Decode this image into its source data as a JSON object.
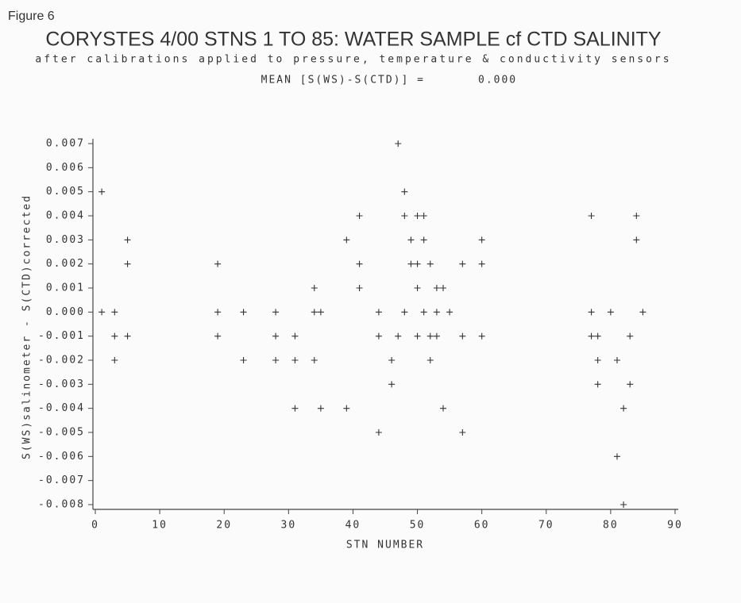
{
  "figure_label": "Figure 6",
  "chart_data": {
    "type": "scatter",
    "title": "CORYSTES 4/00 STNS 1 TO 85: WATER SAMPLE cf CTD SALINITY",
    "subtitle": "after calibrations applied to pressure, temperature & conductivity sensors",
    "annotation_label": "MEAN [S(WS)-S(CTD)] =",
    "annotation_value": "0.000",
    "xlabel": "STN NUMBER",
    "ylabel": "S(WS)salinometer - S(CTD)corrected",
    "marker": "+",
    "color": "#333333",
    "xlim": [
      0,
      90
    ],
    "xticks": [
      0,
      10,
      20,
      30,
      40,
      50,
      60,
      70,
      80,
      90
    ],
    "ylim": [
      -0.008,
      0.007
    ],
    "yticks": [
      0.007,
      0.006,
      0.005,
      0.004,
      0.003,
      0.002,
      0.001,
      {
        "value": 0,
        "label": "0.000"
      },
      -0.001,
      -0.002,
      -0.003,
      -0.004,
      -0.005,
      -0.006,
      -0.007,
      -0.008
    ],
    "x": [
      1,
      1,
      3,
      3,
      3,
      5,
      5,
      5,
      19,
      19,
      19,
      23,
      23,
      28,
      28,
      28,
      31,
      31,
      31,
      34,
      34,
      35,
      34,
      35,
      39,
      39,
      41,
      41,
      41,
      44,
      44,
      44,
      46,
      46,
      47,
      47,
      48,
      48,
      48,
      49,
      49,
      50,
      50,
      50,
      50,
      51,
      51,
      51,
      52,
      52,
      52,
      53,
      53,
      53,
      54,
      54,
      55,
      57,
      57,
      57,
      60,
      60,
      60,
      77,
      77,
      77,
      78,
      78,
      78,
      80,
      81,
      81,
      82,
      82,
      83,
      83,
      84,
      84,
      85
    ],
    "y": [
      0,
      0.005,
      0,
      -0.001,
      -0.002,
      0.003,
      0.002,
      -0.001,
      0.002,
      0,
      -0.001,
      0,
      -0.002,
      0,
      -0.001,
      -0.002,
      -0.001,
      -0.002,
      -0.004,
      0.001,
      0,
      0,
      -0.002,
      -0.004,
      0.003,
      -0.004,
      0.004,
      0.002,
      0.001,
      0,
      -0.001,
      -0.005,
      -0.002,
      -0.003,
      0.007,
      -0.001,
      0.005,
      0.004,
      0,
      0.003,
      0.002,
      0.004,
      0.002,
      0.001,
      -0.001,
      0.004,
      0.003,
      0,
      0.002,
      -0.001,
      -0.002,
      0.001,
      0,
      -0.001,
      0.001,
      -0.004,
      0,
      0.002,
      -0.001,
      -0.005,
      0.003,
      0.002,
      -0.001,
      0.004,
      0,
      -0.001,
      -0.001,
      -0.002,
      -0.003,
      0,
      -0.002,
      -0.006,
      -0.004,
      -0.008,
      -0.001,
      -0.003,
      0.004,
      0.003,
      0
    ]
  }
}
